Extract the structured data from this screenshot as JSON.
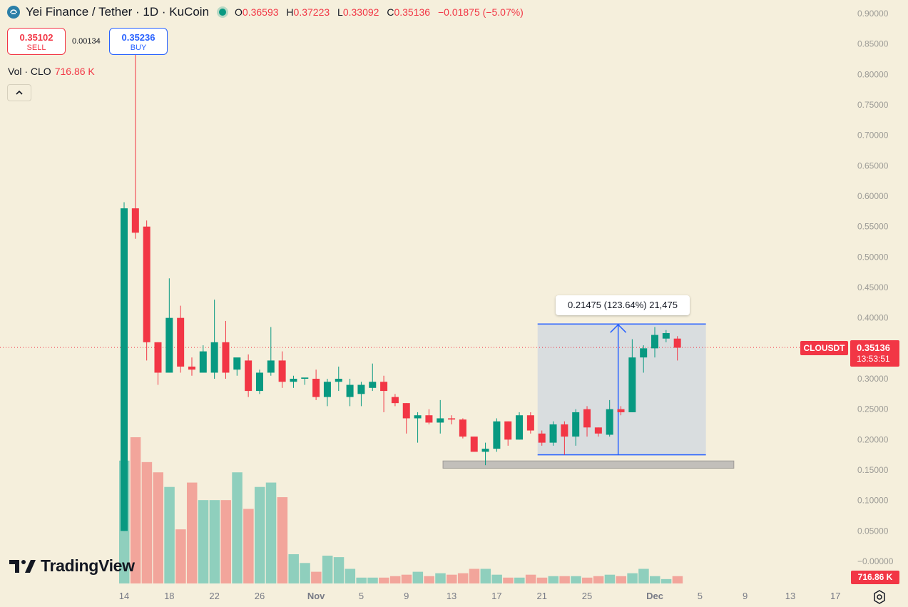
{
  "header": {
    "title": "Yei Finance / Tether · 1D · KuCoin",
    "ohlc": [
      {
        "label": "O",
        "value": "0.36593"
      },
      {
        "label": "H",
        "value": "0.37223"
      },
      {
        "label": "L",
        "value": "0.33092"
      },
      {
        "label": "C",
        "value": "0.35136"
      }
    ],
    "change": "−0.01875 (−5.07%)"
  },
  "trade": {
    "sell_price": "0.35102",
    "sell_label": "SELL",
    "spread": "0.00134",
    "buy_price": "0.35236",
    "buy_label": "BUY"
  },
  "volume_indicator": {
    "label": "Vol · CLO",
    "value": "716.86 K"
  },
  "collapse_icon": "chevron-up-icon",
  "brand": {
    "name": "TradingView"
  },
  "measure_label": "0.21475 (123.64%) 21,475",
  "price_tag": {
    "symbol": "CLOUSDT",
    "price": "0.35136",
    "countdown": "13:53:51"
  },
  "volume_tag": "716.86 K",
  "colors": {
    "up": "#089981",
    "down": "#f23645",
    "up_vol": "#8fcfbd",
    "down_vol": "#f2a59b",
    "background": "#f5efdc",
    "measure": "#2962ff"
  },
  "chart_data": {
    "type": "candlestick",
    "symbol": "CLOUSDT",
    "interval": "1D",
    "price_axis_labels": [
      "0.90000",
      "0.85000",
      "0.80000",
      "0.75000",
      "0.70000",
      "0.65000",
      "0.60000",
      "0.55000",
      "0.50000",
      "0.45000",
      "0.40000",
      "0.35000",
      "0.30000",
      "0.25000",
      "0.20000",
      "0.15000",
      "0.10000",
      "0.05000",
      "−0.00000"
    ],
    "price_axis_values": [
      0.9,
      0.85,
      0.8,
      0.75,
      0.7,
      0.65,
      0.6,
      0.55,
      0.5,
      0.45,
      0.4,
      0.35,
      0.3,
      0.25,
      0.2,
      0.15,
      0.1,
      0.05,
      0.0
    ],
    "time_axis_labels": [
      "14",
      "18",
      "22",
      "26",
      "Nov",
      "5",
      "9",
      "13",
      "17",
      "21",
      "25",
      "Dec",
      "5",
      "9",
      "13",
      "17"
    ],
    "time_axis_day_index": [
      0,
      4,
      8,
      12,
      17,
      21,
      25,
      29,
      33,
      37,
      41,
      47,
      51,
      55,
      59,
      63
    ],
    "candles": [
      [
        0.05,
        0.59,
        0.05,
        0.58
      ],
      [
        0.58,
        0.85,
        0.53,
        0.54
      ],
      [
        0.55,
        0.56,
        0.33,
        0.36
      ],
      [
        0.36,
        0.36,
        0.29,
        0.31
      ],
      [
        0.31,
        0.465,
        0.31,
        0.4
      ],
      [
        0.4,
        0.42,
        0.31,
        0.32
      ],
      [
        0.32,
        0.335,
        0.305,
        0.315
      ],
      [
        0.31,
        0.355,
        0.31,
        0.345
      ],
      [
        0.31,
        0.43,
        0.3,
        0.36
      ],
      [
        0.36,
        0.395,
        0.3,
        0.31
      ],
      [
        0.315,
        0.33,
        0.305,
        0.335
      ],
      [
        0.33,
        0.34,
        0.27,
        0.28
      ],
      [
        0.28,
        0.315,
        0.275,
        0.31
      ],
      [
        0.31,
        0.385,
        0.305,
        0.33
      ],
      [
        0.33,
        0.345,
        0.285,
        0.295
      ],
      [
        0.295,
        0.305,
        0.285,
        0.3
      ],
      [
        0.3,
        0.3,
        0.29,
        0.302
      ],
      [
        0.3,
        0.315,
        0.265,
        0.27
      ],
      [
        0.27,
        0.3,
        0.255,
        0.295
      ],
      [
        0.295,
        0.32,
        0.28,
        0.3
      ],
      [
        0.27,
        0.3,
        0.255,
        0.29
      ],
      [
        0.275,
        0.295,
        0.255,
        0.29
      ],
      [
        0.285,
        0.325,
        0.28,
        0.295
      ],
      [
        0.295,
        0.305,
        0.245,
        0.28
      ],
      [
        0.27,
        0.275,
        0.255,
        0.26
      ],
      [
        0.26,
        0.26,
        0.21,
        0.235
      ],
      [
        0.235,
        0.245,
        0.195,
        0.24
      ],
      [
        0.24,
        0.25,
        0.225,
        0.228
      ],
      [
        0.228,
        0.265,
        0.21,
        0.235
      ],
      [
        0.235,
        0.24,
        0.225,
        0.233
      ],
      [
        0.233,
        0.235,
        0.202,
        0.205
      ],
      [
        0.205,
        0.205,
        0.18,
        0.18
      ],
      [
        0.18,
        0.195,
        0.158,
        0.185
      ],
      [
        0.185,
        0.235,
        0.18,
        0.23
      ],
      [
        0.23,
        0.23,
        0.19,
        0.2
      ],
      [
        0.2,
        0.245,
        0.2,
        0.24
      ],
      [
        0.24,
        0.245,
        0.21,
        0.215
      ],
      [
        0.21,
        0.215,
        0.19,
        0.195
      ],
      [
        0.195,
        0.23,
        0.19,
        0.225
      ],
      [
        0.225,
        0.23,
        0.175,
        0.205
      ],
      [
        0.205,
        0.25,
        0.19,
        0.245
      ],
      [
        0.25,
        0.255,
        0.205,
        0.22
      ],
      [
        0.22,
        0.22,
        0.205,
        0.21
      ],
      [
        0.208,
        0.265,
        0.205,
        0.25
      ],
      [
        0.25,
        0.255,
        0.24,
        0.245
      ],
      [
        0.245,
        0.365,
        0.245,
        0.335
      ],
      [
        0.335,
        0.355,
        0.31,
        0.35
      ],
      [
        0.35,
        0.385,
        0.335,
        0.372
      ],
      [
        0.366,
        0.38,
        0.36,
        0.375
      ],
      [
        0.366,
        0.37,
        0.33,
        0.351
      ]
    ],
    "volume_axis_max": 1.0,
    "volumes": [
      0.84,
      1.0,
      0.83,
      0.76,
      0.66,
      0.37,
      0.69,
      0.57,
      0.57,
      0.57,
      0.76,
      0.51,
      0.66,
      0.69,
      0.59,
      0.2,
      0.14,
      0.08,
      0.19,
      0.18,
      0.1,
      0.04,
      0.04,
      0.04,
      0.05,
      0.06,
      0.08,
      0.05,
      0.07,
      0.06,
      0.07,
      0.1,
      0.1,
      0.06,
      0.04,
      0.04,
      0.06,
      0.04,
      0.05,
      0.05,
      0.05,
      0.04,
      0.05,
      0.06,
      0.05,
      0.07,
      0.1,
      0.05,
      0.03,
      0.05
    ],
    "measure": {
      "from_price": 0.175,
      "to_price": 0.39,
      "from_day": 37,
      "to_day": 49
    },
    "support_zone": {
      "low": 0.153,
      "high": 0.165,
      "from_day": 29,
      "to_day": 54
    },
    "current_price": 0.35136
  }
}
